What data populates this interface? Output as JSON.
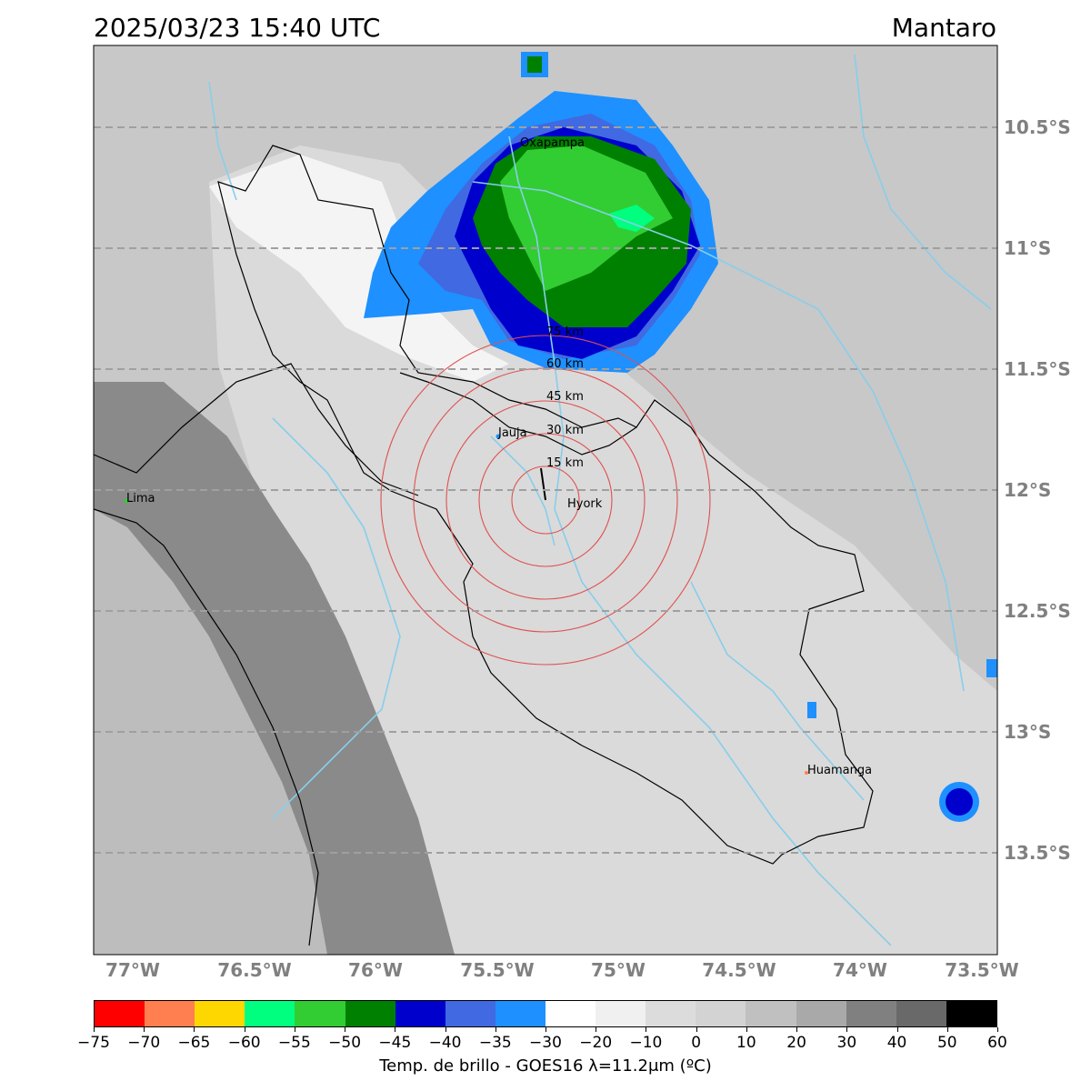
{
  "header": {
    "datetime": "2025/03/23 15:40 UTC",
    "region": "Mantaro"
  },
  "map": {
    "lat_labels": [
      "10.5°S",
      "11°S",
      "11.5°S",
      "12°S",
      "12.5°S",
      "13°S",
      "13.5°S"
    ],
    "lon_labels": [
      "77°W",
      "76.5°W",
      "76°W",
      "75.5°W",
      "75°W",
      "74.5°W",
      "74°W",
      "73.5°W"
    ],
    "cities": [
      {
        "name": "Oxapampa"
      },
      {
        "name": "Jauja"
      },
      {
        "name": "Hyork"
      },
      {
        "name": "Lima"
      },
      {
        "name": "Huamanga"
      }
    ],
    "range_rings": [
      "15 km",
      "30 km",
      "45 km",
      "60 km",
      "75 km"
    ],
    "colors": {
      "background_gray": "#c8c8c8",
      "river": "#87ceeb",
      "ring": "#e05050",
      "border": "#000000"
    }
  },
  "colorbar": {
    "label": "Temp. de brillo - GOES16 λ=11.2μm (ºC)",
    "ticks": [
      "−75",
      "−70",
      "−65",
      "−60",
      "−55",
      "−50",
      "−45",
      "−40",
      "−35",
      "−30",
      "−20",
      "−10",
      "0",
      "10",
      "20",
      "30",
      "40",
      "50",
      "60"
    ],
    "colors": [
      "#ff0000",
      "#ff7f50",
      "#ffd700",
      "#00ff7f",
      "#32cd32",
      "#008000",
      "#0000cd",
      "#4169e1",
      "#1e90ff",
      "#ffffff",
      "#f0f0f0",
      "#dcdcdc",
      "#d3d3d3",
      "#c0c0c0",
      "#a9a9a9",
      "#808080",
      "#696969",
      "#000000"
    ]
  }
}
